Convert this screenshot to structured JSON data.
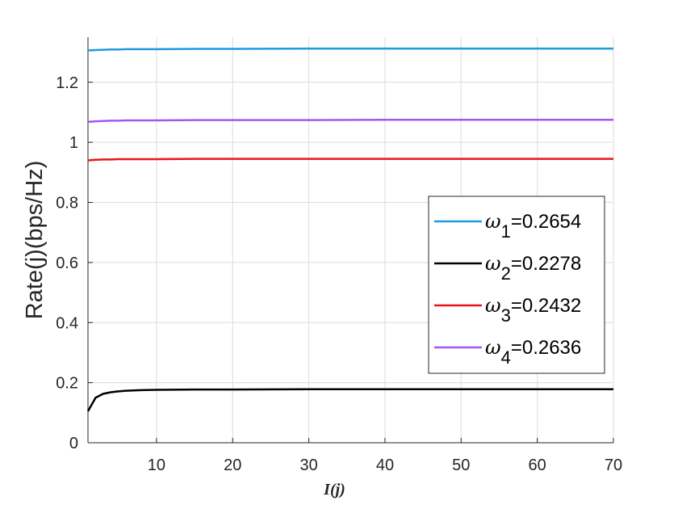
{
  "chart_data": {
    "type": "line",
    "title": "",
    "xlabel": "I(j)",
    "ylabel": "Rate(j)(bps/Hz)",
    "xlim": [
      1,
      70
    ],
    "ylim": [
      0,
      1.3
    ],
    "xticks": [
      10,
      20,
      30,
      40,
      50,
      60,
      70
    ],
    "yticks": [
      0,
      0.2,
      0.4,
      0.6,
      0.8,
      1,
      1.2
    ],
    "xtick_labels": [
      "10",
      "20",
      "30",
      "40",
      "50",
      "60",
      "70"
    ],
    "ytick_labels": [
      "0",
      "0.2",
      "0.4",
      "0.6",
      "0.8",
      "1",
      "1.2"
    ],
    "grid": true,
    "legend_position": "right",
    "x": [
      1,
      2,
      3,
      4,
      5,
      6,
      7,
      8,
      10,
      15,
      20,
      30,
      40,
      50,
      60,
      70
    ],
    "series": [
      {
        "name": "ω1=0.2654",
        "symbol": "ω",
        "subscript": "1",
        "value_text": "=0.2654",
        "color": "#1f9be0",
        "values": [
          1.306,
          1.307,
          1.308,
          1.309,
          1.309,
          1.31,
          1.31,
          1.31,
          1.31,
          1.311,
          1.311,
          1.312,
          1.312,
          1.312,
          1.312,
          1.312
        ]
      },
      {
        "name": "ω2=0.2278",
        "symbol": "ω",
        "subscript": "2",
        "value_text": "=0.2278",
        "color": "#000000",
        "values": [
          0.105,
          0.15,
          0.163,
          0.168,
          0.171,
          0.173,
          0.174,
          0.175,
          0.176,
          0.177,
          0.177,
          0.178,
          0.178,
          0.178,
          0.178,
          0.178
        ]
      },
      {
        "name": "ω3=0.2432",
        "symbol": "ω",
        "subscript": "3",
        "value_text": "=0.2432",
        "color": "#e8141b",
        "values": [
          0.94,
          0.942,
          0.943,
          0.943,
          0.944,
          0.944,
          0.944,
          0.944,
          0.944,
          0.945,
          0.945,
          0.945,
          0.945,
          0.945,
          0.945,
          0.945
        ]
      },
      {
        "name": "ω4=0.2636",
        "symbol": "ω",
        "subscript": "4",
        "value_text": "=0.2636",
        "color": "#a855f0",
        "values": [
          1.068,
          1.07,
          1.071,
          1.072,
          1.072,
          1.073,
          1.073,
          1.073,
          1.073,
          1.074,
          1.074,
          1.074,
          1.075,
          1.075,
          1.075,
          1.075
        ]
      }
    ]
  }
}
